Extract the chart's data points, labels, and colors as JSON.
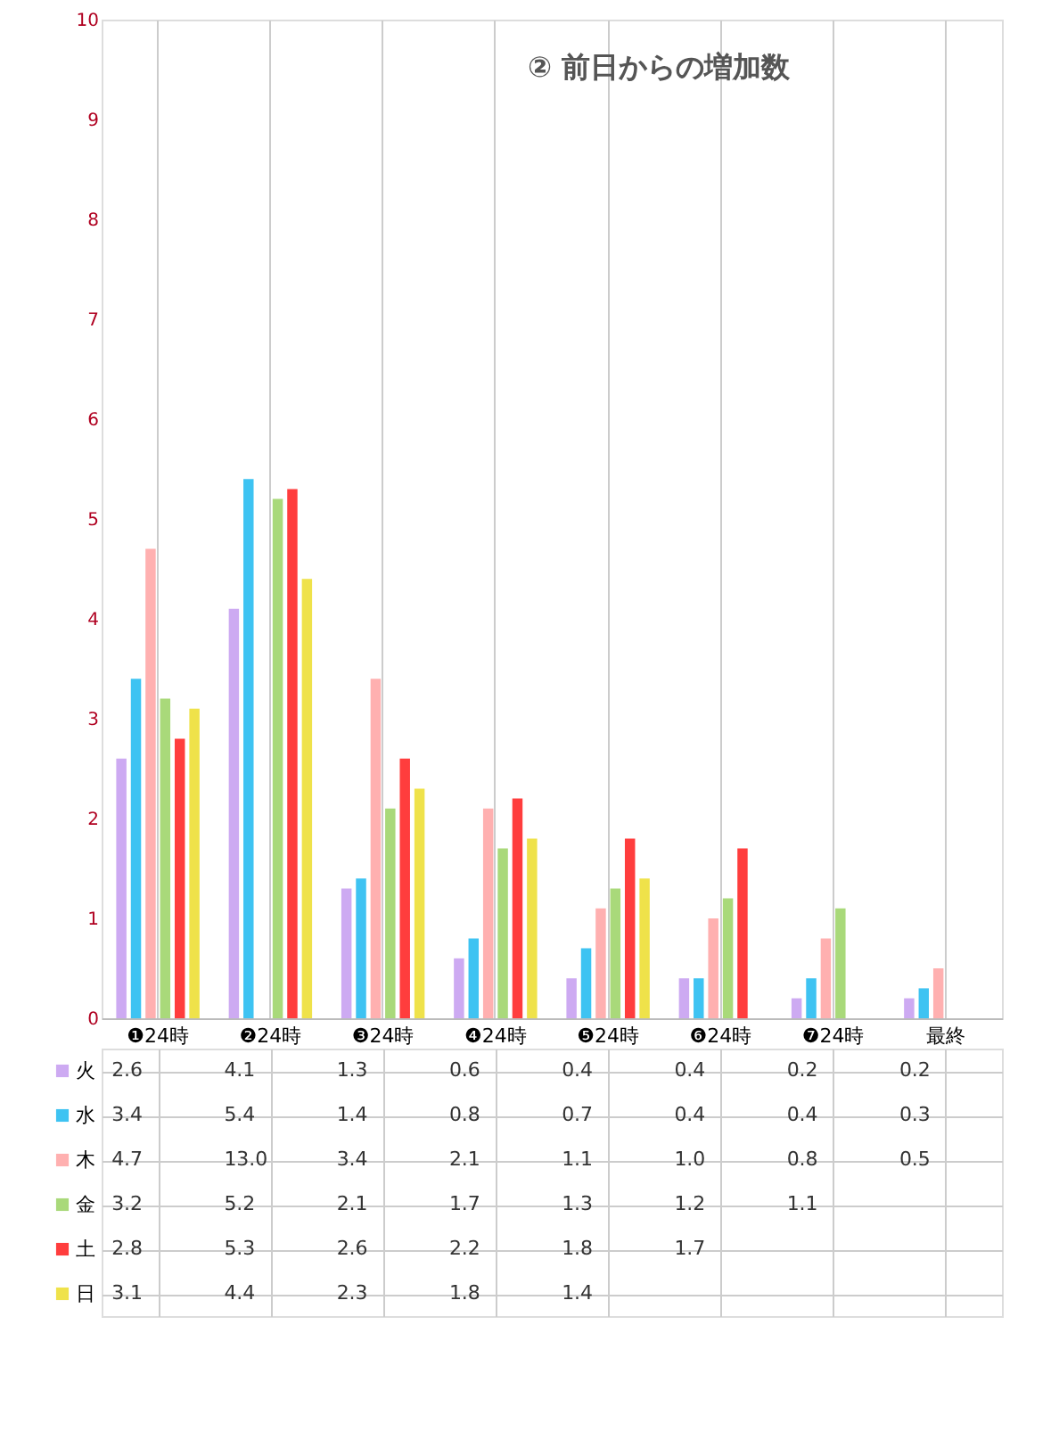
{
  "chart_data": {
    "type": "bar",
    "title": "② 前日からの増加数",
    "categories": [
      "❶24時",
      "❷24時",
      "❸24時",
      "❹24時",
      "❺24時",
      "❻24時",
      "❼24時",
      "最終"
    ],
    "series": [
      {
        "name": "火",
        "color": "#cdaaf2",
        "values": [
          2.6,
          4.1,
          1.3,
          0.6,
          0.4,
          0.4,
          0.2,
          0.2
        ],
        "value_labels": [
          "2.6",
          "4.1",
          "1.3",
          "0.6",
          "0.4",
          "0.4",
          "0.2",
          "0.2"
        ]
      },
      {
        "name": "水",
        "color": "#3ec3f2",
        "values": [
          3.4,
          5.4,
          1.4,
          0.8,
          0.7,
          0.4,
          0.4,
          0.3
        ],
        "value_labels": [
          "3.4",
          "5.4",
          "1.4",
          "0.8",
          "0.7",
          "0.4",
          "0.4",
          "0.3"
        ]
      },
      {
        "name": "木",
        "color": "#ffb0b0",
        "values": [
          4.7,
          null,
          3.4,
          2.1,
          1.1,
          1.0,
          0.8,
          0.5
        ],
        "value_labels": [
          "4.7",
          "13.0",
          "3.4",
          "2.1",
          "1.1",
          "1.0",
          "0.8",
          "0.5"
        ]
      },
      {
        "name": "金",
        "color": "#a9d97a",
        "values": [
          3.2,
          5.2,
          2.1,
          1.7,
          1.3,
          1.2,
          1.1,
          null
        ],
        "value_labels": [
          "3.2",
          "5.2",
          "2.1",
          "1.7",
          "1.3",
          "1.2",
          "1.1",
          null
        ]
      },
      {
        "name": "土",
        "color": "#ff3d3d",
        "values": [
          2.8,
          5.3,
          2.6,
          2.2,
          1.8,
          1.7,
          null,
          null
        ],
        "value_labels": [
          "2.8",
          "5.3",
          "2.6",
          "2.2",
          "1.8",
          "1.7",
          null,
          null
        ]
      },
      {
        "name": "日",
        "color": "#efe24a",
        "values": [
          3.1,
          4.4,
          2.3,
          1.8,
          1.4,
          null,
          null,
          null
        ],
        "value_labels": [
          "3.1",
          "4.4",
          "2.3",
          "1.8",
          "1.4",
          null,
          null,
          null
        ]
      }
    ],
    "ylim": [
      0,
      10
    ],
    "yticks": [
      0,
      1,
      2,
      3,
      4,
      5,
      6,
      7,
      8,
      9,
      10
    ],
    "grid": "x",
    "legend": "left"
  }
}
